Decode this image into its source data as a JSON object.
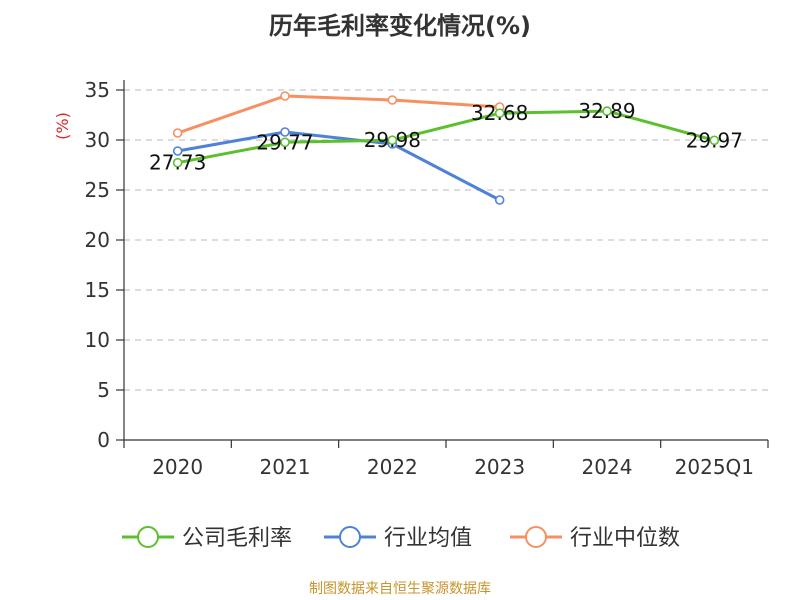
{
  "title": "历年毛利率变化情况(%)",
  "source": "制图数据来自恒生聚源数据库",
  "chart_data": {
    "type": "line",
    "title": "历年毛利率变化情况(%)",
    "ylabel": "(%)",
    "xlabel": "",
    "categories": [
      "2020",
      "2021",
      "2022",
      "2023",
      "2024",
      "2025Q1"
    ],
    "ylim": [
      0,
      35
    ],
    "yticks": [
      0,
      5,
      10,
      15,
      20,
      25,
      30,
      35
    ],
    "grid": true,
    "legend_position": "bottom",
    "series": [
      {
        "name": "公司毛利率",
        "color": "#5cc02e",
        "values": [
          27.73,
          29.77,
          29.98,
          32.68,
          32.89,
          29.97
        ],
        "labels": [
          "27.73",
          "29.77",
          "29.98",
          "32.68",
          "32.89",
          "29.97"
        ]
      },
      {
        "name": "行业均值",
        "color": "#4f82d6",
        "values": [
          28.9,
          30.8,
          29.6,
          24.0,
          null,
          null
        ]
      },
      {
        "name": "行业中位数",
        "color": "#f79060",
        "values": [
          30.7,
          34.4,
          34.0,
          33.3,
          null,
          null
        ]
      }
    ]
  }
}
